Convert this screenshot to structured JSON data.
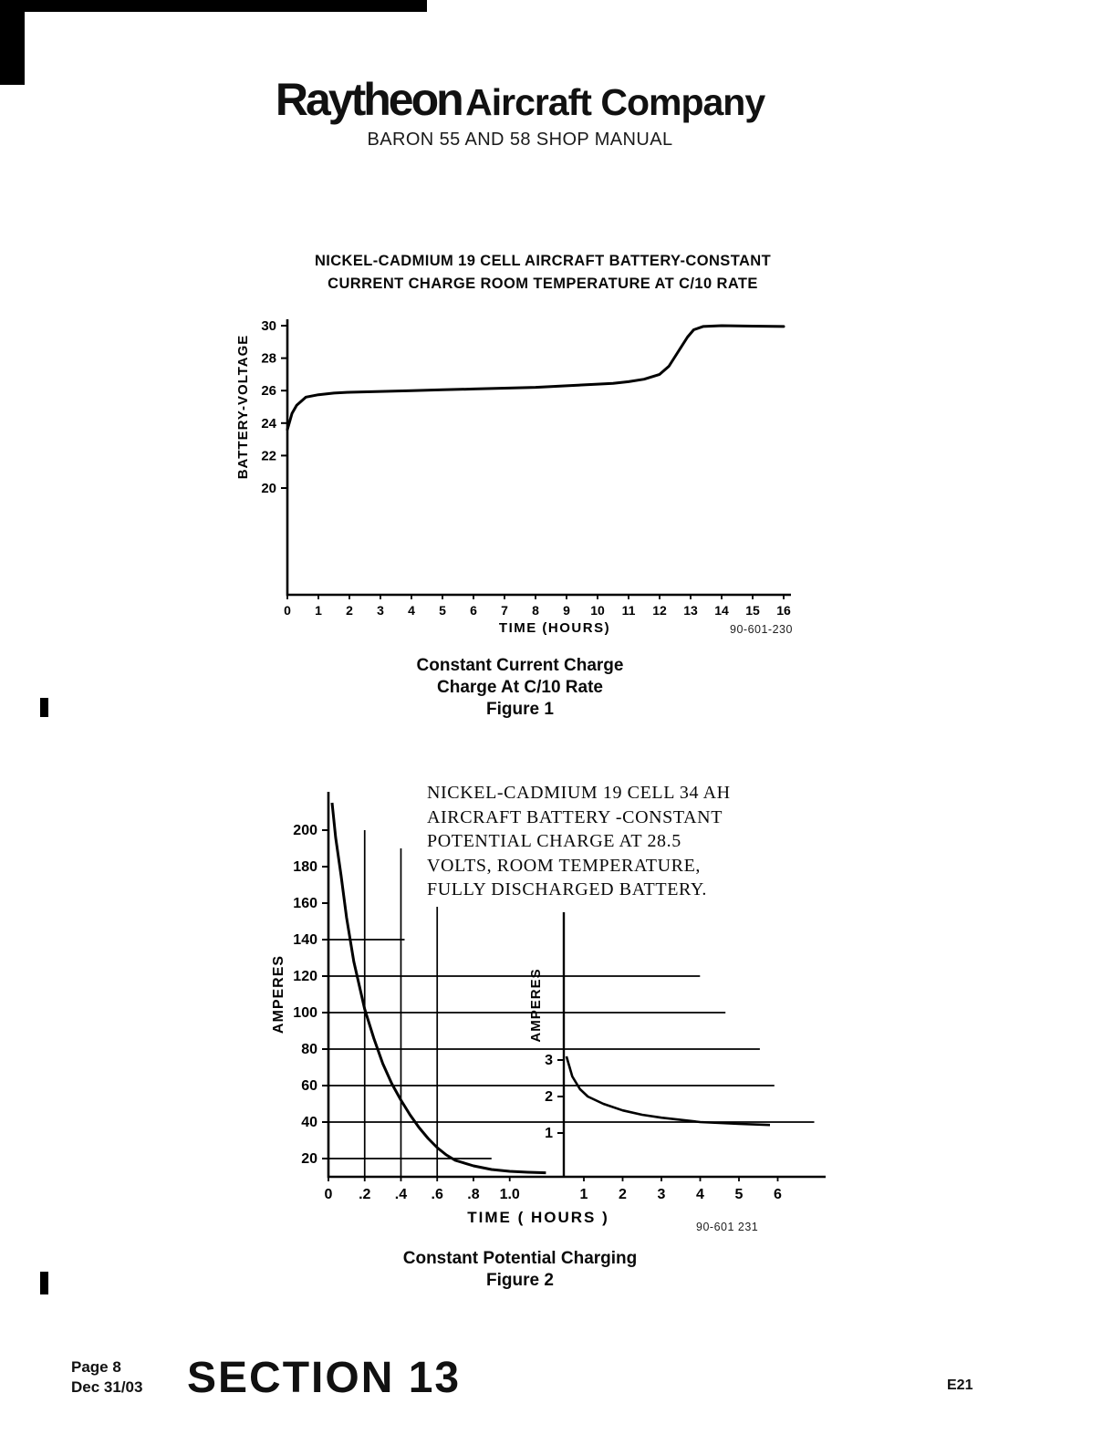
{
  "header": {
    "brand": "Raytheon",
    "brand_suffix": "Aircraft Company",
    "subtitle": "BARON 55 AND 58 SHOP MANUAL"
  },
  "figure1": {
    "title_line1": "NICKEL-CADMIUM 19 CELL AIRCRAFT BATTERY-CONSTANT",
    "title_line2": "CURRENT CHARGE ROOM TEMPERATURE AT C/10 RATE",
    "ref_number": "90-601-230",
    "caption": [
      "Constant Current Charge",
      "Charge At C/10 Rate",
      "Figure 1"
    ]
  },
  "figure2": {
    "title_lines": [
      "NICKEL-CADMIUM 19 CELL 34 AH",
      "AIRCRAFT BATTERY -CONSTANT",
      "POTENTIAL CHARGE AT 28.5",
      "VOLTS, ROOM TEMPERATURE,",
      "FULLY DISCHARGED BATTERY."
    ],
    "ref_number": "90-601 231",
    "caption": [
      "Constant Potential Charging",
      "Figure 2"
    ]
  },
  "footer": {
    "page": "Page 8",
    "date": "Dec 31/03",
    "section": "SECTION 13",
    "code": "E21"
  },
  "chart_data": [
    {
      "id": "chart1",
      "type": "line",
      "title": "NICKEL-CADMIUM 19 CELL AIRCRAFT BATTERY-CONSTANT CURRENT CHARGE ROOM TEMPERATURE AT C/10 RATE",
      "xlabel": "TIME (HOURS)",
      "ylabel": "BATTERY-VOLTAGE",
      "xlim": [
        0,
        16
      ],
      "ylim_labeled": [
        20,
        30
      ],
      "grid": false,
      "x_ticks": [
        0,
        1,
        2,
        3,
        4,
        5,
        6,
        7,
        8,
        9,
        10,
        11,
        12,
        13,
        14,
        15,
        16
      ],
      "y_ticks": [
        20,
        22,
        24,
        26,
        28,
        30
      ],
      "series": [
        {
          "name": "battery-voltage",
          "x": [
            0,
            0.15,
            0.3,
            0.6,
            1,
            1.5,
            2,
            3,
            4,
            5,
            6,
            7,
            8,
            9,
            10,
            10.5,
            11,
            11.5,
            12,
            12.3,
            12.6,
            12.9,
            13.1,
            13.4,
            14,
            15,
            16
          ],
          "y": [
            23.6,
            24.6,
            25.1,
            25.6,
            25.75,
            25.85,
            25.9,
            25.95,
            26.0,
            26.05,
            26.1,
            26.15,
            26.2,
            26.3,
            26.4,
            26.45,
            26.55,
            26.7,
            27.0,
            27.5,
            28.4,
            29.3,
            29.75,
            29.95,
            30.0,
            29.97,
            29.95
          ]
        }
      ]
    },
    {
      "id": "chart2",
      "type": "line",
      "title": "NICKEL-CADMIUM 19 CELL 34 AH AIRCRAFT BATTERY -CONSTANT POTENTIAL CHARGE AT 28.5 VOLTS, ROOM TEMPERATURE, FULLY DISCHARGED BATTERY.",
      "xlabel": "TIME ( HOURS )",
      "main_axis": {
        "ylabel": "AMPERES",
        "x_tick_labels": [
          "0",
          ".2",
          ".4",
          ".6",
          ".8",
          "1.0"
        ],
        "x_tick_values": [
          0,
          0.2,
          0.4,
          0.6,
          0.8,
          1.0
        ],
        "y_ticks": [
          20,
          40,
          60,
          80,
          100,
          120,
          140,
          160,
          180,
          200
        ],
        "series": {
          "name": "charging-current-amperes",
          "x": [
            0.02,
            0.04,
            0.07,
            0.1,
            0.14,
            0.2,
            0.25,
            0.3,
            0.35,
            0.4,
            0.45,
            0.5,
            0.55,
            0.6,
            0.65,
            0.7,
            0.8,
            0.9,
            1.0,
            1.1,
            1.2
          ],
          "y": [
            215,
            196,
            175,
            152,
            128,
            102,
            86,
            72,
            61,
            52,
            44,
            37,
            31,
            26,
            22,
            19,
            16,
            14,
            13,
            12.5,
            12.2
          ]
        },
        "h_grid": [
          {
            "value": 140,
            "extent": 0.42
          },
          {
            "value": 120,
            "extent": 2.05
          },
          {
            "value": 100,
            "extent": 2.19
          },
          {
            "value": 80,
            "extent": 2.38
          },
          {
            "value": 60,
            "extent": 2.46
          },
          {
            "value": 40,
            "extent": 2.68
          },
          {
            "value": 20,
            "extent": 0.9
          }
        ],
        "v_grid": [
          {
            "value": 0.2,
            "top": 200
          },
          {
            "value": 0.4,
            "top": 190
          },
          {
            "value": 0.6,
            "top": 158
          }
        ]
      },
      "inset_axis": {
        "ylabel": "AMPERES",
        "x_ticks": [
          1,
          2,
          3,
          4,
          5,
          6
        ],
        "y_ticks": [
          1,
          2,
          3
        ],
        "series": {
          "name": "trickle-current-amperes",
          "x": [
            0.55,
            0.7,
            0.9,
            1.1,
            1.5,
            2,
            2.5,
            3,
            4,
            5,
            5.8
          ],
          "y": [
            3.1,
            2.55,
            2.2,
            2.0,
            1.8,
            1.62,
            1.5,
            1.42,
            1.3,
            1.25,
            1.22
          ]
        }
      }
    }
  ]
}
